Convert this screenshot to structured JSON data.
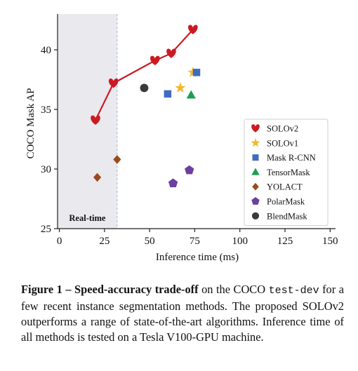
{
  "chart_data": {
    "type": "scatter",
    "xlabel": "Inference time (ms)",
    "ylabel": "COCO Mask AP",
    "xlim": [
      -1,
      153
    ],
    "ylim": [
      25,
      43
    ],
    "xticks": [
      0,
      25,
      50,
      75,
      100,
      125,
      150
    ],
    "yticks": [
      25,
      30,
      35,
      40
    ],
    "realtime_label": "Real-time",
    "realtime_threshold_ms": 32,
    "legend_position": "right",
    "series": [
      {
        "name": "SOLOv2",
        "marker": "heart",
        "color": "#cc1a22",
        "connected": true,
        "points": [
          [
            20,
            34.1
          ],
          [
            30,
            37.2
          ],
          [
            53,
            39.1
          ],
          [
            62,
            39.7
          ],
          [
            74,
            41.7
          ]
        ]
      },
      {
        "name": "SOLOv1",
        "marker": "star",
        "color": "#f4b731",
        "points": [
          [
            67,
            36.8
          ],
          [
            74,
            38.1
          ]
        ]
      },
      {
        "name": "Mask R-CNN",
        "marker": "square",
        "color": "#3f6cbf",
        "points": [
          [
            60,
            36.3
          ],
          [
            76,
            38.1
          ]
        ]
      },
      {
        "name": "TensorMask",
        "marker": "triangle",
        "color": "#1f9e52",
        "points": [
          [
            73,
            36.2
          ]
        ]
      },
      {
        "name": "YOLACT",
        "marker": "diamond",
        "color": "#9a4a1c",
        "points": [
          [
            21,
            29.3
          ],
          [
            32,
            30.8
          ]
        ]
      },
      {
        "name": "PolarMask",
        "marker": "pentagon",
        "color": "#6c3fa0",
        "points": [
          [
            63,
            28.8
          ],
          [
            72,
            29.9
          ]
        ]
      },
      {
        "name": "BlendMask",
        "marker": "circle",
        "color": "#3a3a3a",
        "points": [
          [
            47,
            36.8
          ]
        ]
      }
    ]
  },
  "caption": {
    "figure_label": "Figure 1 – Speed-accuracy trade-off",
    "text_1": " on the COCO ",
    "code": "test-dev",
    "text_2": " for a few recent instance segmentation methods. The proposed SOLOv2 outperforms a range of state-of-the-art algorithms. Inference time of all methods is tested on a Tesla V100-GPU machine."
  }
}
